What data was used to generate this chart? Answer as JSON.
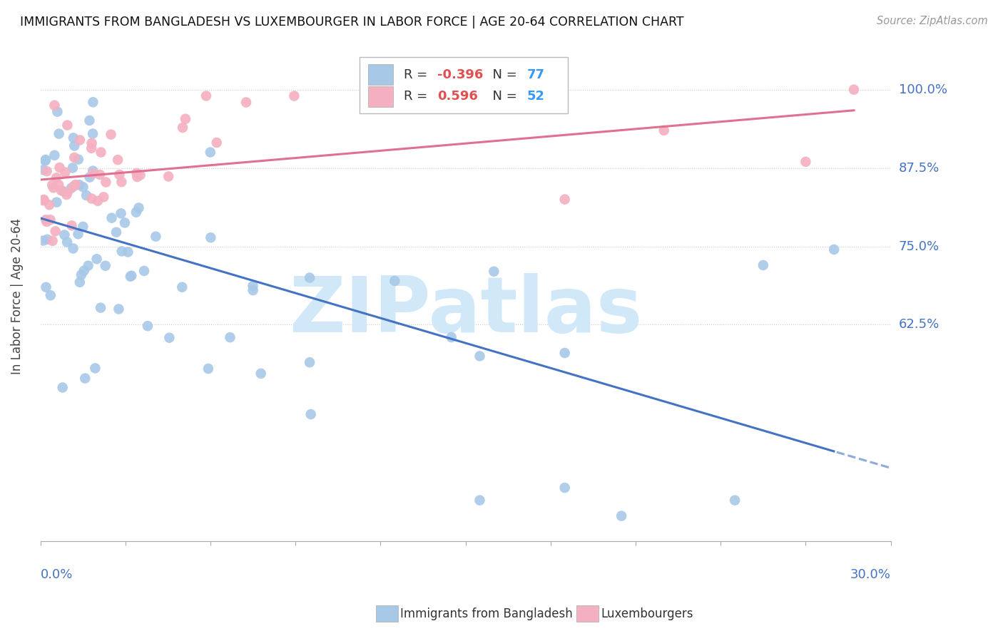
{
  "title": "IMMIGRANTS FROM BANGLADESH VS LUXEMBOURGER IN LABOR FORCE | AGE 20-64 CORRELATION CHART",
  "source": "Source: ZipAtlas.com",
  "ylabel": "In Labor Force | Age 20-64",
  "x_min": 0.0,
  "x_max": 0.3,
  "y_min": 0.28,
  "y_max": 1.06,
  "blue_R": -0.396,
  "blue_N": 77,
  "pink_R": 0.596,
  "pink_N": 52,
  "blue_color": "#a8c8e8",
  "blue_line_color": "#4472c4",
  "pink_color": "#f4b0c0",
  "pink_line_color": "#e07090",
  "watermark": "ZIPatlas",
  "watermark_color": "#d0e8f8",
  "legend_R_color": "#e05050",
  "legend_N_color": "#3399ff",
  "ytick_vals": [
    0.625,
    0.75,
    0.875,
    1.0
  ],
  "ytick_labels": [
    "62.5%",
    "75.0%",
    "87.5%",
    "100.0%"
  ],
  "grid_color": "#cccccc",
  "spine_color": "#aaaaaa"
}
